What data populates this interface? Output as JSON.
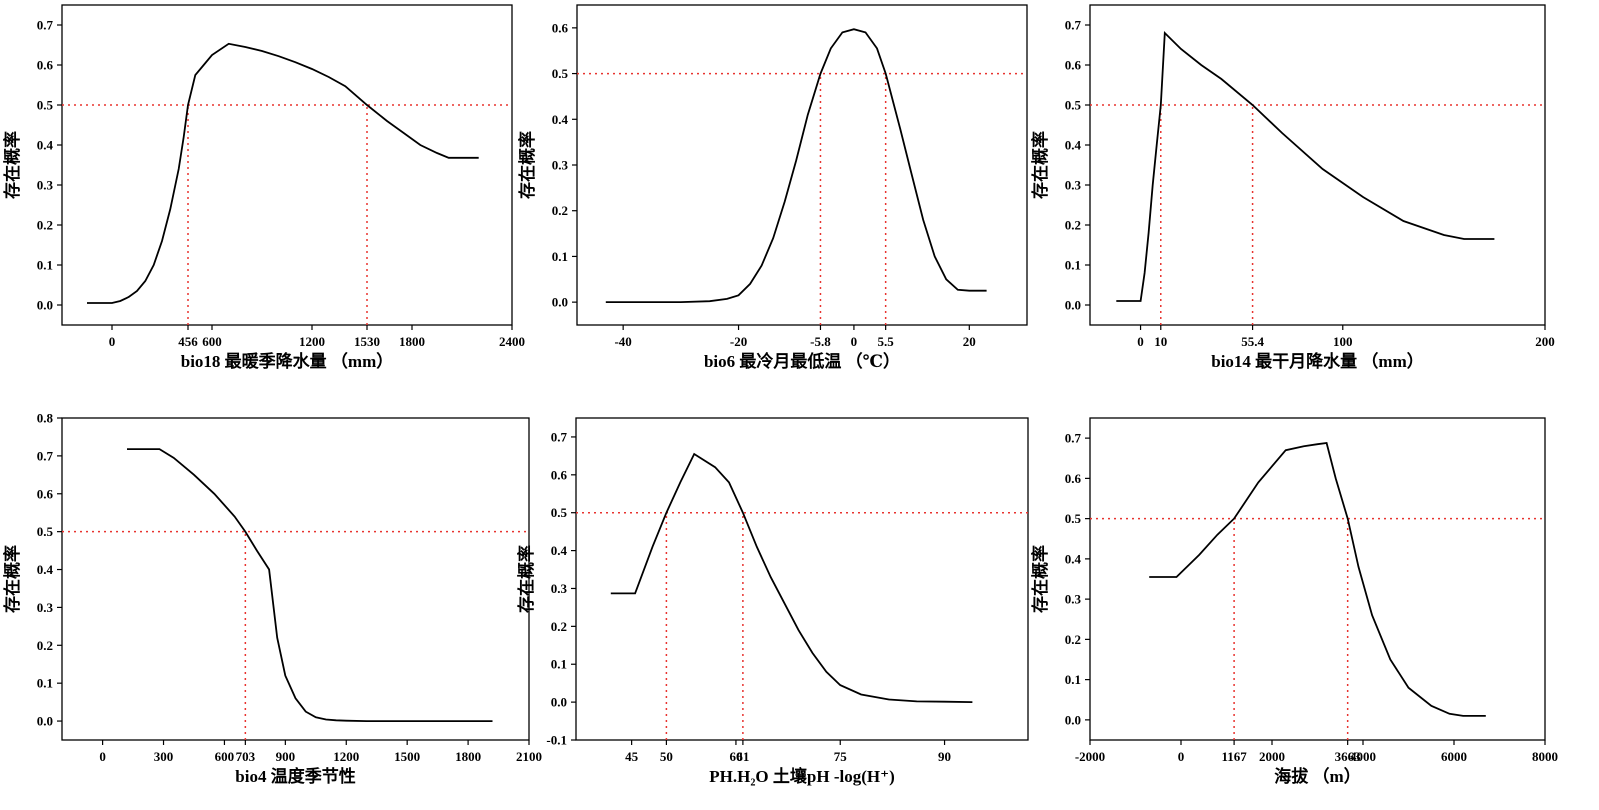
{
  "threshold": 0.5,
  "colors": {
    "curve": "#000000",
    "reference": "#e8332f"
  },
  "chart_data": [
    {
      "type": "line",
      "ylabel": "存在概率",
      "xlabel": "bio18 最暖季降水量 （mm）",
      "xlim": [
        -300,
        2400
      ],
      "ylim": [
        -0.05,
        0.75
      ],
      "xticks": [
        0,
        456,
        600,
        1200,
        1530,
        1800,
        2400
      ],
      "yticks": [
        0.0,
        0.1,
        0.2,
        0.3,
        0.4,
        0.5,
        0.6,
        0.7
      ],
      "ytick_format": 1,
      "crossings": [
        456,
        1530
      ],
      "x": [
        -150,
        0,
        50,
        100,
        150,
        200,
        250,
        300,
        350,
        400,
        430,
        456,
        500,
        550,
        600,
        700,
        800,
        900,
        1000,
        1100,
        1200,
        1300,
        1400,
        1530,
        1650,
        1750,
        1850,
        1950,
        2020,
        2200
      ],
      "y": [
        0.005,
        0.005,
        0.01,
        0.02,
        0.035,
        0.06,
        0.1,
        0.16,
        0.24,
        0.34,
        0.42,
        0.5,
        0.575,
        0.6,
        0.625,
        0.653,
        0.645,
        0.635,
        0.622,
        0.607,
        0.59,
        0.57,
        0.547,
        0.5,
        0.46,
        0.43,
        0.4,
        0.38,
        0.368,
        0.368
      ]
    },
    {
      "type": "line",
      "ylabel": "存在概率",
      "xlabel": "bio6 最冷月最低温 （℃）",
      "xlim": [
        -48,
        30
      ],
      "ylim": [
        -0.05,
        0.65
      ],
      "xticks": [
        -40,
        -20,
        -5.8,
        0,
        5.5,
        20
      ],
      "yticks": [
        0.0,
        0.1,
        0.2,
        0.3,
        0.4,
        0.5,
        0.6
      ],
      "ytick_format": 1,
      "crossings": [
        -5.8,
        5.5
      ],
      "x": [
        -43,
        -30,
        -25,
        -22,
        -20,
        -18,
        -16,
        -14,
        -12,
        -10,
        -8,
        -5.8,
        -4,
        -2,
        0,
        2,
        4,
        5.5,
        8,
        10,
        12,
        14,
        16,
        18,
        20,
        23
      ],
      "y": [
        0.0,
        0.0,
        0.002,
        0.007,
        0.015,
        0.04,
        0.08,
        0.14,
        0.22,
        0.31,
        0.41,
        0.5,
        0.555,
        0.59,
        0.597,
        0.59,
        0.555,
        0.5,
        0.38,
        0.28,
        0.18,
        0.1,
        0.05,
        0.027,
        0.025,
        0.025
      ]
    },
    {
      "type": "line",
      "ylabel": "存在概率",
      "xlabel": "bio14 最干月降水量 （mm）",
      "xlim": [
        -25,
        200
      ],
      "ylim": [
        -0.05,
        0.75
      ],
      "xticks": [
        0,
        10,
        55.4,
        100,
        200
      ],
      "yticks": [
        0.0,
        0.1,
        0.2,
        0.3,
        0.4,
        0.5,
        0.6,
        0.7
      ],
      "ytick_format": 1,
      "crossings": [
        10,
        55.4
      ],
      "x": [
        -12,
        0,
        2,
        4,
        6,
        8,
        10,
        12,
        20,
        30,
        40,
        55.4,
        70,
        90,
        110,
        130,
        150,
        160,
        175
      ],
      "y": [
        0.01,
        0.01,
        0.08,
        0.18,
        0.3,
        0.4,
        0.5,
        0.68,
        0.64,
        0.6,
        0.565,
        0.5,
        0.43,
        0.34,
        0.27,
        0.21,
        0.175,
        0.165,
        0.165
      ]
    },
    {
      "type": "line",
      "ylabel": "存在概率",
      "xlabel": "bio4 温度季节性",
      "xlim": [
        -200,
        2100
      ],
      "ylim": [
        -0.05,
        0.8
      ],
      "xticks": [
        0,
        300,
        600,
        703,
        900,
        1200,
        1500,
        1800,
        2100
      ],
      "yticks": [
        0.0,
        0.1,
        0.2,
        0.3,
        0.4,
        0.5,
        0.6,
        0.7,
        0.8
      ],
      "ytick_format": 1,
      "crossings": [
        703
      ],
      "x": [
        120,
        280,
        350,
        450,
        550,
        650,
        703,
        760,
        820,
        860,
        900,
        950,
        1000,
        1050,
        1100,
        1150,
        1200,
        1300,
        1500,
        1920
      ],
      "y": [
        0.718,
        0.718,
        0.695,
        0.65,
        0.6,
        0.54,
        0.5,
        0.45,
        0.4,
        0.22,
        0.12,
        0.06,
        0.025,
        0.01,
        0.004,
        0.002,
        0.001,
        0.0,
        0.0,
        0.0
      ]
    },
    {
      "type": "line",
      "ylabel": "存在概率",
      "xlabel": "PH.H₂O 土壤pH -log(H⁺)",
      "xlim": [
        37,
        102
      ],
      "ylim": [
        -0.1,
        0.75
      ],
      "xticks": [
        45,
        50,
        60,
        61,
        75,
        90
      ],
      "yticks": [
        -0.1,
        0.0,
        0.1,
        0.2,
        0.3,
        0.4,
        0.5,
        0.6,
        0.7
      ],
      "ytick_format": 1,
      "crossings": [
        50,
        61
      ],
      "x": [
        42,
        45.5,
        48,
        50,
        52,
        54,
        57,
        59,
        61,
        63,
        65,
        67,
        69,
        71,
        73,
        75,
        78,
        82,
        86,
        90,
        94
      ],
      "y": [
        0.287,
        0.287,
        0.41,
        0.5,
        0.58,
        0.655,
        0.62,
        0.58,
        0.5,
        0.41,
        0.33,
        0.26,
        0.19,
        0.13,
        0.08,
        0.045,
        0.02,
        0.007,
        0.002,
        0.001,
        0.0
      ]
    },
    {
      "type": "line",
      "ylabel": "存在概率",
      "xlabel": "海拔 （m）",
      "xlim": [
        -2000,
        8000
      ],
      "ylim": [
        -0.05,
        0.75
      ],
      "xticks": [
        -2000,
        0,
        1167,
        2000,
        3663,
        4000,
        6000,
        8000
      ],
      "ytick_labels_override": {
        "3663": "3663",
        "4000": "4000"
      },
      "yticks": [
        0.0,
        0.1,
        0.2,
        0.3,
        0.4,
        0.5,
        0.6,
        0.7
      ],
      "ytick_format": 1,
      "crossings": [
        1167,
        3663
      ],
      "x": [
        -700,
        -100,
        400,
        800,
        1167,
        1700,
        2300,
        2700,
        3000,
        3200,
        3400,
        3663,
        3900,
        4200,
        4600,
        5000,
        5500,
        5900,
        6200,
        6700
      ],
      "y": [
        0.355,
        0.355,
        0.41,
        0.46,
        0.5,
        0.59,
        0.67,
        0.68,
        0.685,
        0.688,
        0.6,
        0.5,
        0.38,
        0.26,
        0.15,
        0.08,
        0.035,
        0.015,
        0.01,
        0.01
      ]
    }
  ]
}
